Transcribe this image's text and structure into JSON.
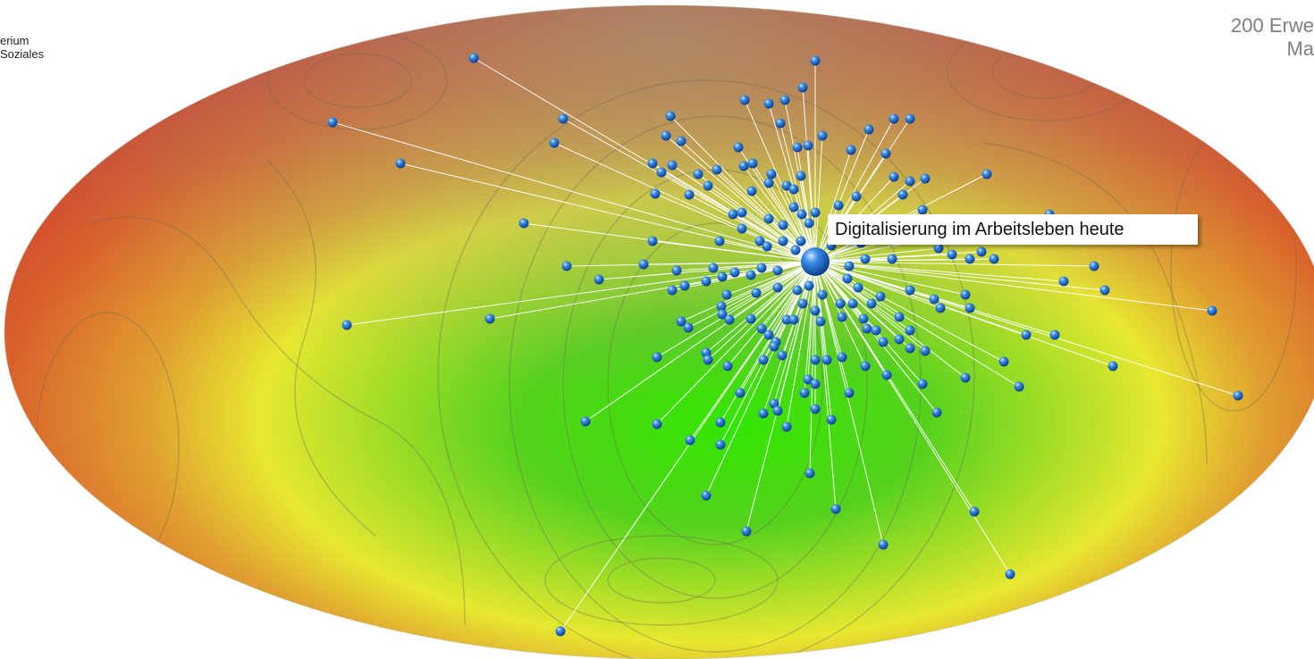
{
  "logo": {
    "line1": "erium",
    "line2": "Soziales"
  },
  "corner": {
    "line1": "200 Erwe",
    "line2": "Ma"
  },
  "central_label": "Digitalisierung im Arbeitsleben heute",
  "colors": {
    "node": "#1f6fd1",
    "link": "#ffffff",
    "center_zone": "#33dd00",
    "edge_zone": "#d9442c"
  }
}
